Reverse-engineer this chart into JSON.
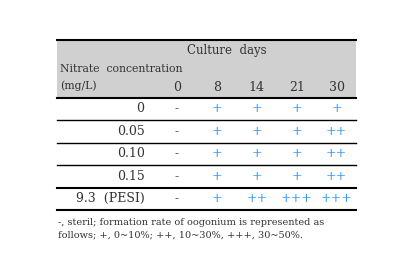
{
  "header_bg": "#d0d0d0",
  "header_label_top": "Culture  days",
  "header_label_left_line1": "Nitrate  concentration",
  "header_label_left_line2": "(mg/L)",
  "col_headers": [
    "0",
    "8",
    "14",
    "21",
    "30"
  ],
  "row_labels": [
    "0",
    "0.05",
    "0.10",
    "0.15",
    "9.3  (PESI)"
  ],
  "table_data": [
    [
      "-",
      "+",
      "+",
      "+",
      "+"
    ],
    [
      "-",
      "+",
      "+",
      "+",
      "++"
    ],
    [
      "-",
      "+",
      "+",
      "+",
      "++"
    ],
    [
      "-",
      "+",
      "+",
      "+",
      "++"
    ],
    [
      "-",
      "+",
      "++",
      "+++",
      "+++"
    ]
  ],
  "plus_color": "#3399ff",
  "minus_color": "#444444",
  "label_color": "#333333",
  "footer_line1": "-, steril; formation rate of oogonium is represented as",
  "footer_line2": "follows; +, 0~10%; ++, 10~30%, +++, 30~50%.",
  "fig_width": 4.03,
  "fig_height": 2.79,
  "dpi": 100
}
